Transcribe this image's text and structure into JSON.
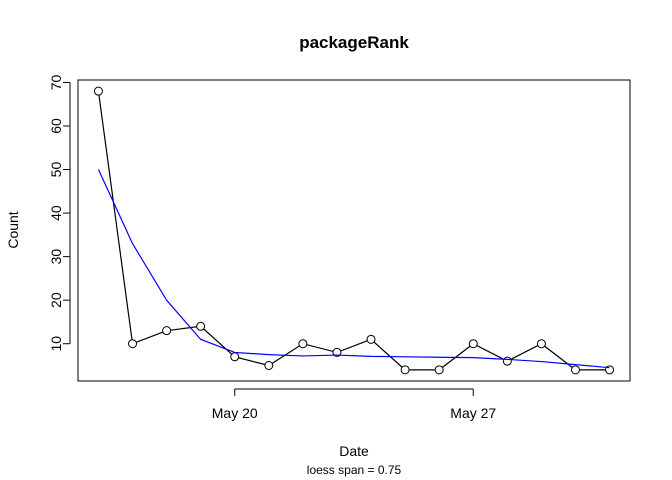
{
  "chart_data": {
    "type": "line",
    "title": "packageRank",
    "subtitle": "loess span = 0.75",
    "x_label": "Date",
    "y_label": "Count",
    "x": [
      "May 16",
      "May 17",
      "May 18",
      "May 19",
      "May 20",
      "May 21",
      "May 22",
      "May 23",
      "May 24",
      "May 25",
      "May 26",
      "May 27",
      "May 28",
      "May 29",
      "May 30",
      "May 31"
    ],
    "values": [
      68,
      10,
      13,
      14,
      7,
      5,
      10,
      8,
      11,
      4,
      4,
      10,
      6,
      10,
      4,
      4
    ],
    "color": "#000000",
    "smooth_values": [
      50,
      33,
      20,
      11,
      8,
      7.5,
      7.2,
      7.4,
      7.1,
      7,
      6.9,
      6.8,
      6.4,
      5.9,
      5.2,
      4.5
    ],
    "smooth_color": "#0000ff",
    "xlim": [
      "May 16",
      "May 31"
    ],
    "xticks": [
      "May 20",
      "May 27"
    ],
    "ylim": [
      1.44,
      70.56
    ],
    "yticks": [
      10,
      20,
      30,
      40,
      50,
      60,
      70
    ]
  }
}
